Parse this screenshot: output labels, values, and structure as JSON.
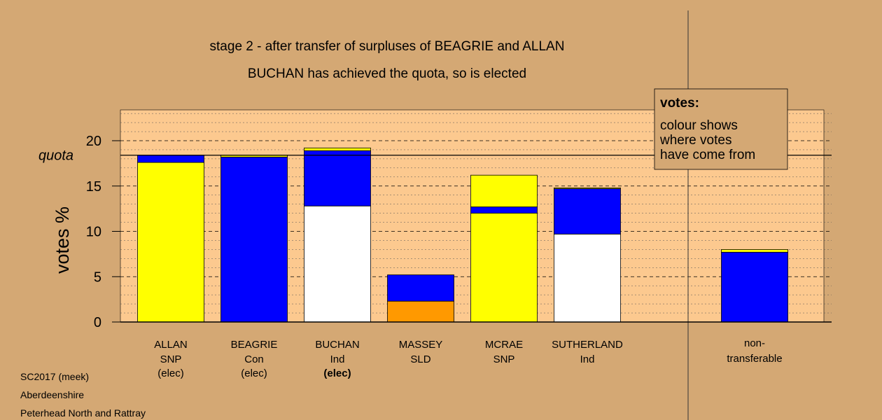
{
  "chart_data": {
    "type": "bar",
    "stacked": true,
    "title": "stage 2 - after transfer of surpluses of BEAGRIE and ALLAN",
    "subtitle": "BUCHAN has achieved the quota, so is elected",
    "ylabel": "votes %",
    "xlabel": "",
    "ylim": [
      0,
      23.5
    ],
    "yticks": [
      0,
      5,
      10,
      15,
      20
    ],
    "grid": true,
    "quota": {
      "label": "quota",
      "value": 18.4
    },
    "legend": {
      "placement": "top-right",
      "heading": "votes:",
      "lines": [
        "colour shows",
        "where votes",
        "have come from"
      ]
    },
    "colors": {
      "SNP": "#ffff00",
      "Con": "#0000ff",
      "Ind": "#ffffff",
      "SLD": "#ff9900",
      "background": "#d4a874",
      "plot_area": "#fcc98f"
    },
    "categories": [
      {
        "name": "ALLAN",
        "party": "SNP",
        "status": "(elec)",
        "status_bold": false,
        "segments": [
          {
            "source": "SNP",
            "value": 17.6
          },
          {
            "source": "Con",
            "value": 0.8
          }
        ]
      },
      {
        "name": "BEAGRIE",
        "party": "Con",
        "status": "(elec)",
        "status_bold": false,
        "segments": [
          {
            "source": "Con",
            "value": 18.2
          },
          {
            "source": "SNP",
            "value": 0.2
          }
        ]
      },
      {
        "name": "BUCHAN",
        "party": "Ind",
        "status": "(elec)",
        "status_bold": true,
        "segments": [
          {
            "source": "Ind",
            "value": 12.8
          },
          {
            "source": "Con",
            "value": 6.1
          },
          {
            "source": "SNP",
            "value": 0.3
          }
        ]
      },
      {
        "name": "MASSEY",
        "party": "SLD",
        "status": "",
        "status_bold": false,
        "segments": [
          {
            "source": "SLD",
            "value": 2.3
          },
          {
            "source": "Con",
            "value": 2.9
          }
        ]
      },
      {
        "name": "MCRAE",
        "party": "SNP",
        "status": "",
        "status_bold": false,
        "segments": [
          {
            "source": "SNP",
            "value": 12.0
          },
          {
            "source": "Con",
            "value": 0.7
          },
          {
            "source": "SNP",
            "value": 3.5
          }
        ]
      },
      {
        "name": "SUTHERLAND",
        "party": "Ind",
        "status": "",
        "status_bold": false,
        "segments": [
          {
            "source": "Ind",
            "value": 9.7
          },
          {
            "source": "Con",
            "value": 5.0
          },
          {
            "source": "SNP",
            "value": 0.1
          }
        ]
      }
    ],
    "non_transferable": {
      "label_lines": [
        "non-",
        "transferable"
      ],
      "segments": [
        {
          "source": "Con",
          "value": 7.7
        },
        {
          "source": "SNP",
          "value": 0.3
        }
      ]
    }
  },
  "footer": {
    "source": "SC2017 (meek)",
    "council": "Aberdeenshire",
    "ward": "Peterhead North and Rattray"
  }
}
